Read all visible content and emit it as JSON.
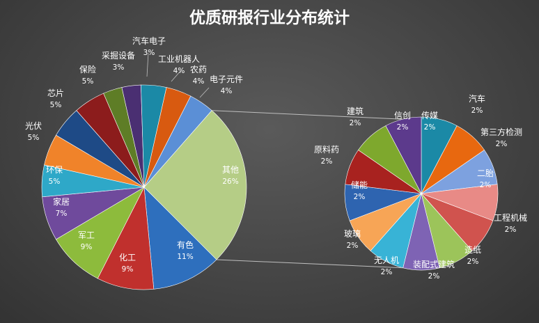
{
  "chart_data": {
    "type": "pie",
    "subtype": "pie-of-pie",
    "title": "优质研报行业分布统计",
    "main_pie": {
      "slices": [
        {
          "label": "电子元件",
          "value": 4,
          "pct": "4%",
          "color": "#5b8fd6"
        },
        {
          "label": "其他",
          "value": 26,
          "pct": "26%",
          "color": "#b5cd86",
          "label_inside": true
        },
        {
          "label": "有色",
          "value": 11,
          "pct": "11%",
          "color": "#2e6fbd",
          "label_inside": true
        },
        {
          "label": "化工",
          "value": 9,
          "pct": "9%",
          "color": "#c0302d",
          "label_inside": true
        },
        {
          "label": "军工",
          "value": 9,
          "pct": "9%",
          "color": "#8dbb3c",
          "label_inside": true
        },
        {
          "label": "家居",
          "value": 7,
          "pct": "7%",
          "color": "#6f4a9c",
          "label_inside": true
        },
        {
          "label": "环保",
          "value": 5,
          "pct": "5%",
          "color": "#2ea8c8",
          "label_inside": true
        },
        {
          "label": "光伏",
          "value": 5,
          "pct": "5%",
          "color": "#f0832a"
        },
        {
          "label": "芯片",
          "value": 5,
          "pct": "5%",
          "color": "#1e4a86"
        },
        {
          "label": "保险",
          "value": 5,
          "pct": "5%",
          "color": "#8c1c1c"
        },
        {
          "label": "采掘设备",
          "value": 3,
          "pct": "3%",
          "color": "#5e7d26"
        },
        {
          "label": "汽车电子",
          "value": 3,
          "pct": "3%",
          "color": "#4a2f72"
        },
        {
          "label": "工业机器人",
          "value": 4,
          "pct": "4%",
          "color": "#1b89a6"
        },
        {
          "label": "农药",
          "value": 4,
          "pct": "4%",
          "color": "#d85a10"
        }
      ]
    },
    "secondary_pie": {
      "slices": [
        {
          "label": "汽车",
          "value": 2,
          "pct": "2%",
          "color": "#1b89a6"
        },
        {
          "label": "第三方检测",
          "value": 2,
          "pct": "2%",
          "color": "#e8680f"
        },
        {
          "label": "二胎",
          "value": 2,
          "pct": "2%",
          "color": "#7da1df",
          "label_inside": true
        },
        {
          "label": "工程机械",
          "value": 2,
          "pct": "2%",
          "color": "#e88a86"
        },
        {
          "label": "造纸",
          "value": 2,
          "pct": "2%",
          "color": "#d0534e"
        },
        {
          "label": "装配式建筑",
          "value": 2,
          "pct": "2%",
          "color": "#9cc45a"
        },
        {
          "label": "无人机",
          "value": 2,
          "pct": "2%",
          "color": "#7e63b4"
        },
        {
          "label": "玻璃",
          "value": 2,
          "pct": "2%",
          "color": "#38b3d6"
        },
        {
          "label": "储能",
          "value": 2,
          "pct": "2%",
          "color": "#f7a556",
          "label_inside": true
        },
        {
          "label": "原料药",
          "value": 2,
          "pct": "2%",
          "color": "#2e64b0"
        },
        {
          "label": "建筑",
          "value": 2,
          "pct": "2%",
          "color": "#a8221f"
        },
        {
          "label": "信创",
          "value": 2,
          "pct": "2%",
          "color": "#7ea82d",
          "label_inside": true
        },
        {
          "label": "传媒",
          "value": 2,
          "pct": "2%",
          "color": "#5c3a8c",
          "label_inside": true
        }
      ]
    },
    "legend": "none",
    "grid": false
  }
}
